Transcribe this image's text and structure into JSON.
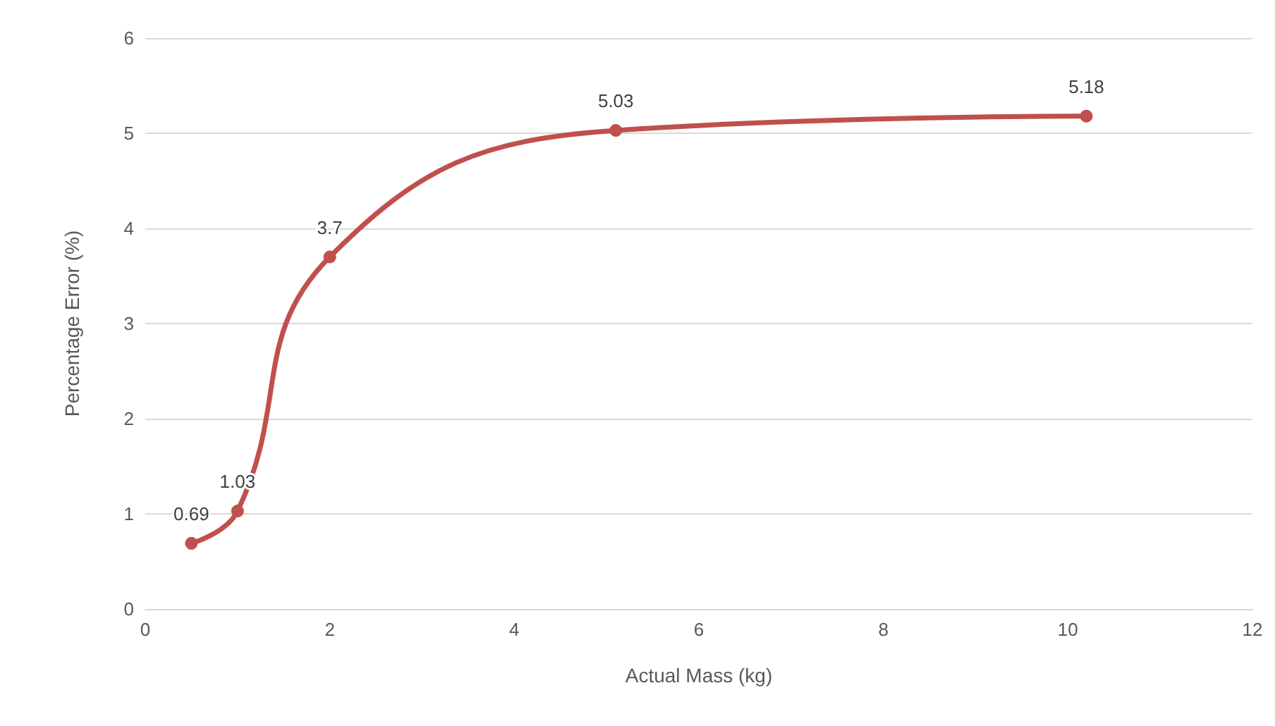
{
  "chart_data": {
    "type": "line",
    "xlabel": "Actual Mass (kg)",
    "ylabel": "Percentage Error (%)",
    "x": [
      0.5,
      1.0,
      2.0,
      5.1,
      10.2
    ],
    "series": [
      {
        "color": "#c0504d",
        "values": [
          0.69,
          1.03,
          3.7,
          5.03,
          5.18
        ]
      }
    ],
    "xlim": [
      0,
      12
    ],
    "xticks": [
      0,
      2,
      4,
      6,
      8,
      10,
      12
    ],
    "ylim": [
      0,
      6
    ],
    "yticks": [
      0,
      1,
      2,
      3,
      4,
      5,
      6
    ],
    "grid": "y",
    "marker": "circle",
    "line_style": "solid",
    "data_labels": true
  }
}
